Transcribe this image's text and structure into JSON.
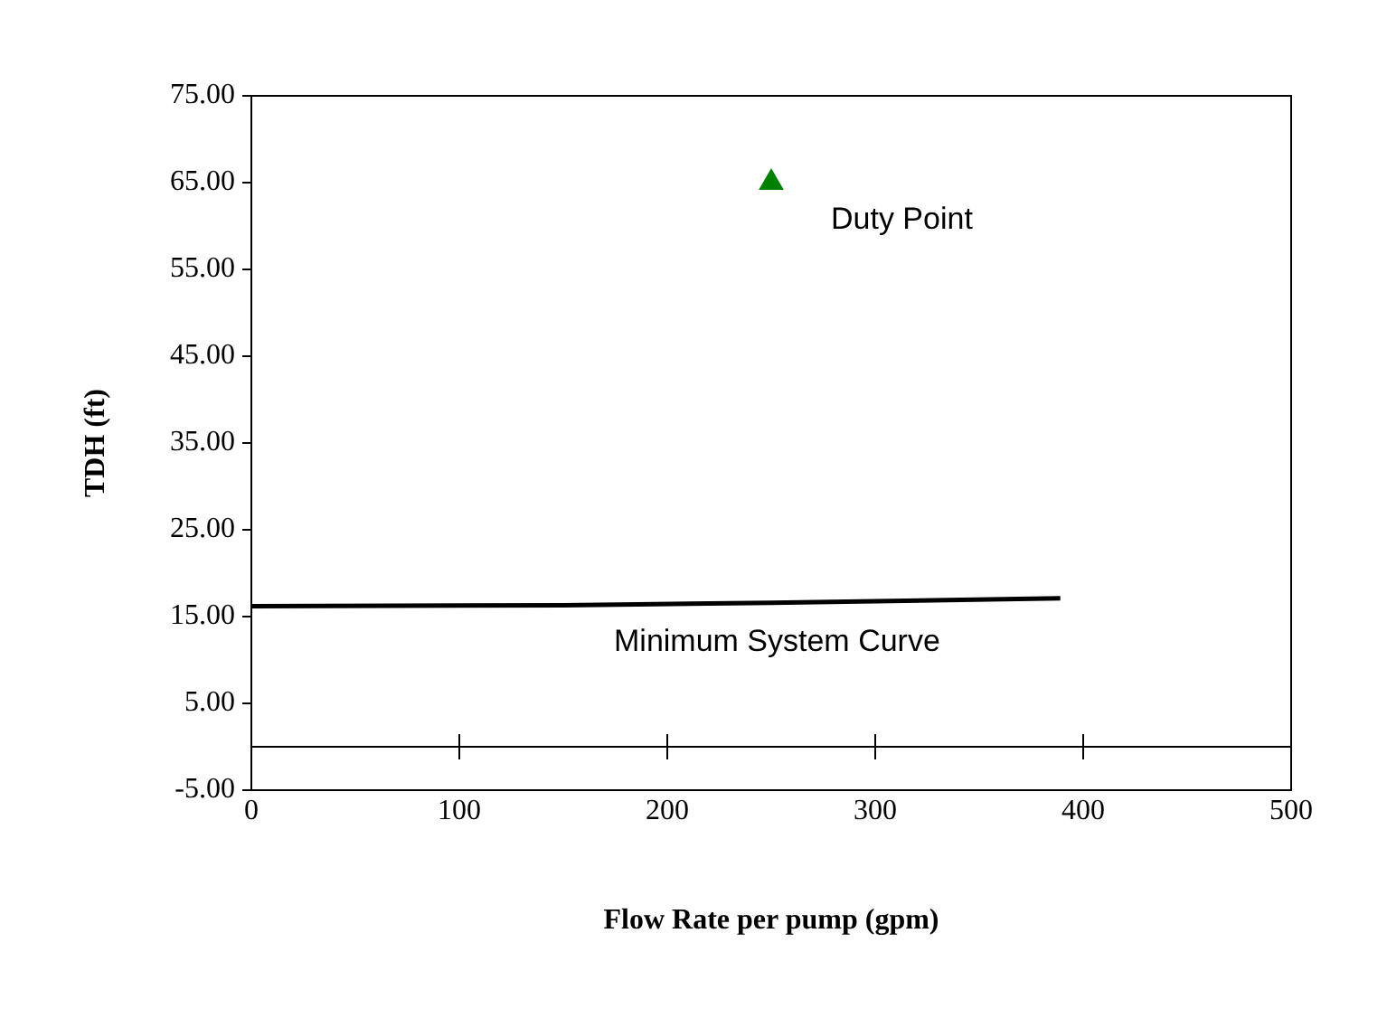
{
  "chart_data": {
    "type": "line",
    "xlabel": "Flow Rate per pump (gpm)",
    "ylabel": "TDH (ft)",
    "xlim": [
      0,
      500
    ],
    "xticks": [
      0,
      100,
      200,
      300,
      400,
      500
    ],
    "ylim": [
      -5,
      75
    ],
    "yticks": [
      {
        "value": -5,
        "label": "-5.00"
      },
      {
        "value": 5,
        "label": "5.00"
      },
      {
        "value": 15,
        "label": "15.00"
      },
      {
        "value": 25,
        "label": "25.00"
      },
      {
        "value": 35,
        "label": "35.00"
      },
      {
        "value": 45,
        "label": "45.00"
      },
      {
        "value": 55,
        "label": "55.00"
      },
      {
        "value": 65,
        "label": "65.00"
      },
      {
        "value": 75,
        "label": "75.00"
      }
    ],
    "grid": false,
    "legend": false,
    "ref_lines": [
      {
        "axis": "y",
        "value": 0,
        "color": "#000000"
      }
    ],
    "series": [
      {
        "name": "Minimum System Curve",
        "color": "#000000",
        "marker": "none",
        "x": [
          0,
          150,
          250,
          389
        ],
        "values": [
          16.2,
          16.3,
          16.6,
          17.1
        ]
      },
      {
        "name": "Duty Point",
        "type": "scatter",
        "color": "#008000",
        "marker": "triangle",
        "x": [
          250
        ],
        "values": [
          65
        ]
      }
    ]
  }
}
